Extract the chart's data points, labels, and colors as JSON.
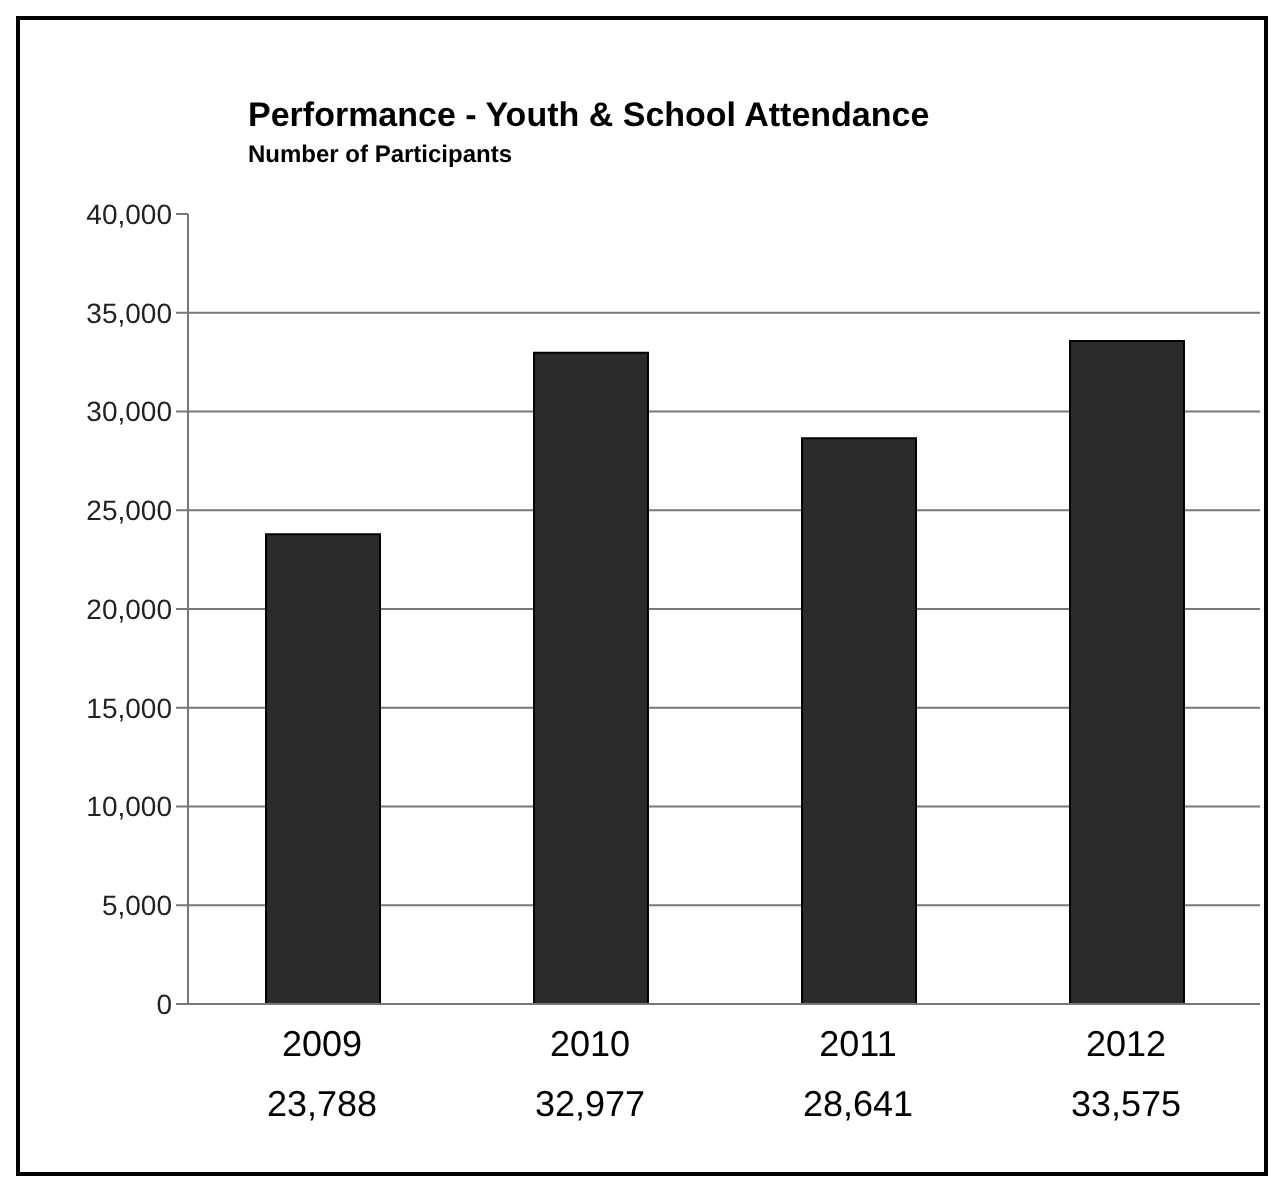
{
  "chart_data": {
    "type": "bar",
    "title": "Performance - Youth & School Attendance",
    "subtitle": "Number of Participants",
    "categories": [
      "2009",
      "2010",
      "2011",
      "2012"
    ],
    "values": [
      23788,
      32977,
      28641,
      33575
    ],
    "value_labels": [
      "23,788",
      "32,977",
      "28,641",
      "33,575"
    ],
    "color": "#2b2b2b",
    "ylim": [
      0,
      40000
    ],
    "yticks": [
      {
        "value": 0,
        "label": "0"
      },
      {
        "value": 5000,
        "label": "5,000"
      },
      {
        "value": 10000,
        "label": "10,000"
      },
      {
        "value": 15000,
        "label": "15,000"
      },
      {
        "value": 20000,
        "label": "20,000"
      },
      {
        "value": 25000,
        "label": "25,000"
      },
      {
        "value": 30000,
        "label": "30,000"
      },
      {
        "value": 35000,
        "label": "35,000"
      },
      {
        "value": 40000,
        "label": "40,000"
      }
    ],
    "grid": "y",
    "legend": false
  }
}
